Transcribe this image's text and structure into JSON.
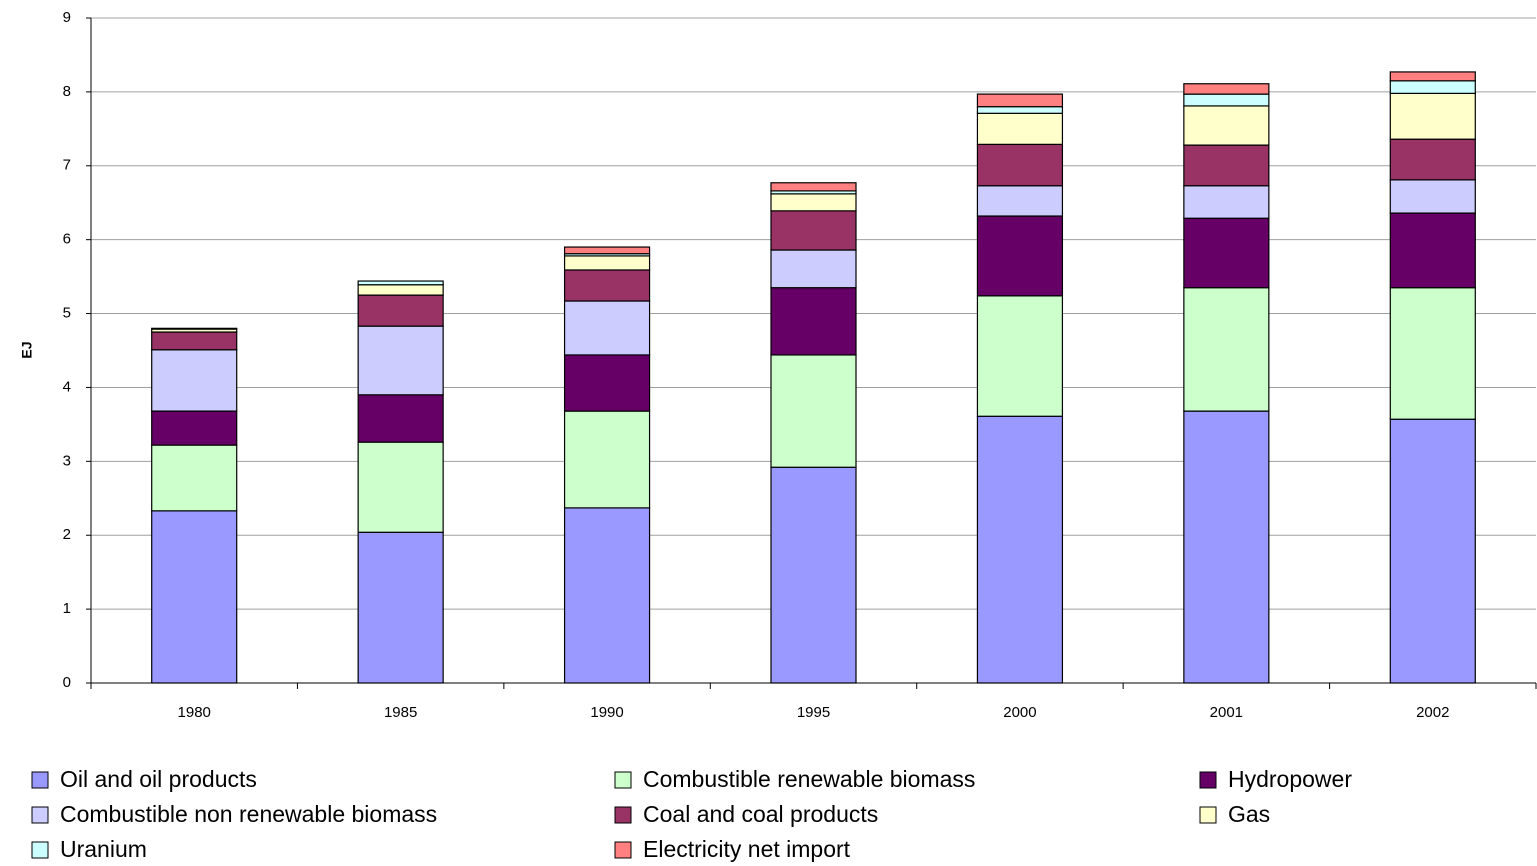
{
  "chart_data": {
    "type": "stacked_bar",
    "y_label": "EJ",
    "categories": [
      "1980",
      "1985",
      "1990",
      "1995",
      "2000",
      "2001",
      "2002"
    ],
    "ylim": [
      0,
      9
    ],
    "yticks": [
      0,
      1,
      2,
      3,
      4,
      5,
      6,
      7,
      8,
      9
    ],
    "grid": true,
    "legend": "bottom",
    "series": [
      {
        "name": "Oil and oil products",
        "color": "#9999ff",
        "values": [
          2.33,
          2.04,
          2.37,
          2.92,
          3.61,
          3.68,
          3.57
        ]
      },
      {
        "name": "Combustible renewable biomass",
        "color": "#ccffcc",
        "values": [
          0.89,
          1.22,
          1.31,
          1.52,
          1.63,
          1.67,
          1.78
        ]
      },
      {
        "name": "Hydropower",
        "color": "#660066",
        "values": [
          0.46,
          0.64,
          0.76,
          0.91,
          1.08,
          0.94,
          1.01
        ]
      },
      {
        "name": "Combustible non renewable biomass",
        "color": "#ccccff",
        "values": [
          0.83,
          0.93,
          0.73,
          0.51,
          0.41,
          0.44,
          0.45
        ]
      },
      {
        "name": "Coal and coal products",
        "color": "#993366",
        "values": [
          0.24,
          0.42,
          0.42,
          0.53,
          0.56,
          0.55,
          0.55
        ]
      },
      {
        "name": "Gas",
        "color": "#ffffcc",
        "values": [
          0.04,
          0.14,
          0.19,
          0.23,
          0.42,
          0.53,
          0.62
        ]
      },
      {
        "name": "Uranium",
        "color": "#ccffff",
        "values": [
          0,
          0.05,
          0.03,
          0.04,
          0.09,
          0.16,
          0.17
        ]
      },
      {
        "name": "Electricity net import",
        "color": "#ff8080",
        "values": [
          0.01,
          0,
          0.09,
          0.11,
          0.17,
          0.14,
          0.12
        ]
      }
    ]
  }
}
